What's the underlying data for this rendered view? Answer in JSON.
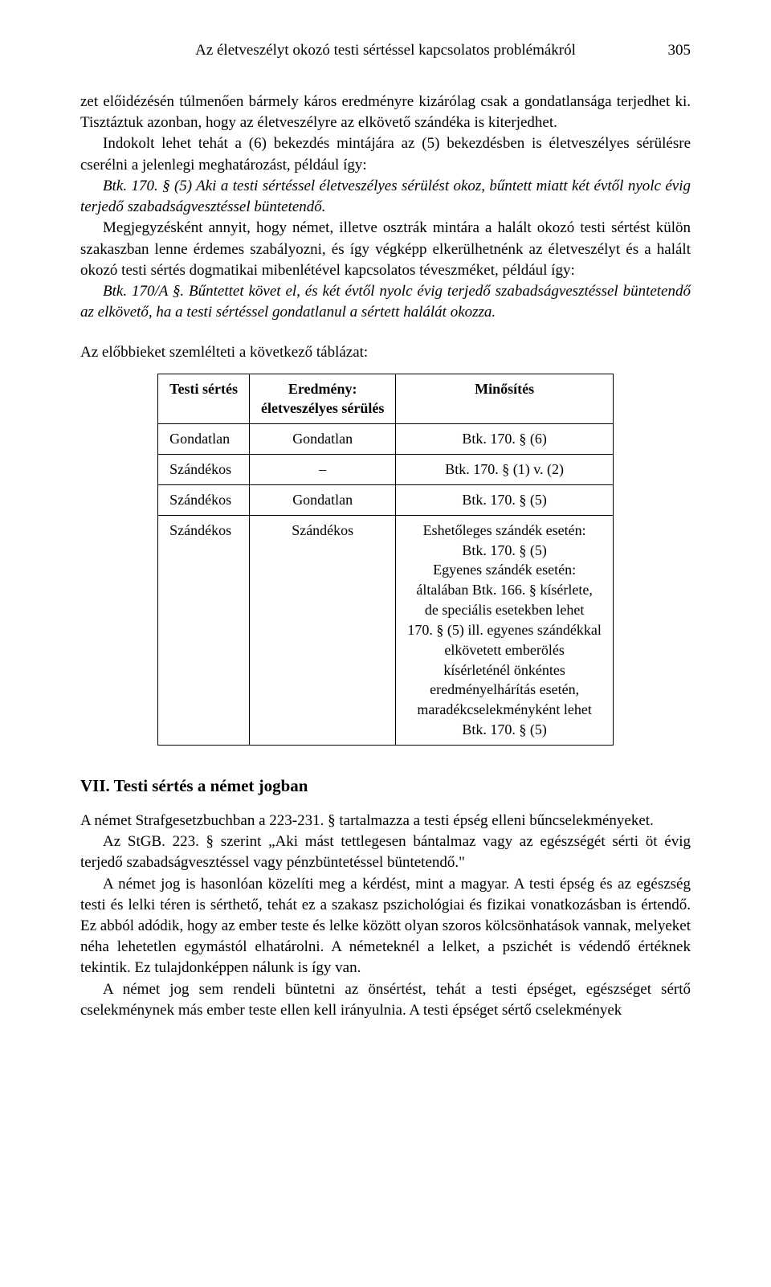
{
  "header": {
    "title": "Az életveszélyt okozó testi sértéssel kapcsolatos problémákról",
    "page_number": "305"
  },
  "para1": "zet előidézésén túlmenően bármely káros eredményre kizárólag csak a gondatlansága terjedhet ki. Tisztáztuk azonban, hogy az életveszélyre az elkövető szándéka is kiterjedhet.",
  "para2": "Indokolt lehet tehát a (6) bekezdés mintájára az (5) bekezdésben is életveszélyes sérülésre cserélni a jelenlegi meghatározást, például így:",
  "para3": "Btk. 170. § (5) Aki a testi sértéssel életveszélyes sérülést okoz, bűntett miatt két évtől nyolc évig terjedő szabadságvesztéssel büntetendő.",
  "para4": "Megjegyzésként annyit, hogy német, illetve osztrák mintára a halált okozó testi sértést külön szakaszban lenne érdemes szabályozni, és így végképp elkerülhetnénk az életveszélyt és a halált okozó testi sértés dogmatikai mibenlétével kapcsolatos téveszméket, például így:",
  "para5": "Btk. 170/A §. Bűntettet követ el, és két évtől nyolc évig terjedő szabadságvesztéssel büntetendő az elkövető, ha a testi sértéssel gondatlanul a sértett halálát okozza.",
  "para6": "Az előbbieket szemlélteti a következő táblázat:",
  "table": {
    "headers": {
      "col1": "Testi sértés",
      "col2_line1": "Eredmény:",
      "col2_line2": "életveszélyes sérülés",
      "col3": "Minősítés"
    },
    "rows": [
      {
        "c1": "Gondatlan",
        "c2": "Gondatlan",
        "c3": "Btk. 170. § (6)"
      },
      {
        "c1": "Szándékos",
        "c2": "–",
        "c3": "Btk. 170. § (1) v. (2)"
      },
      {
        "c1": "Szándékos",
        "c2": "Gondatlan",
        "c3": "Btk. 170. § (5)"
      },
      {
        "c1": "Szándékos",
        "c2": "Szándékos",
        "c3_l1": "Eshetőleges szándék esetén:",
        "c3_l2": "Btk. 170. § (5)",
        "c3_l3": "Egyenes szándék esetén:",
        "c3_l4": "általában Btk. 166. § kísérlete,",
        "c3_l5": "de speciális esetekben lehet",
        "c3_l6": "170. § (5) ill. egyenes szándékkal",
        "c3_l7": "elkövetett emberölés",
        "c3_l8": "kísérleténél önkéntes",
        "c3_l9": "eredményelhárítás esetén,",
        "c3_l10": "maradékcselekményként lehet",
        "c3_l11": "Btk. 170. § (5)"
      }
    ]
  },
  "section7": {
    "heading": "VII. Testi sértés a német jogban",
    "p1": "A német Strafgesetzbuchban a 223-231. § tartalmazza a testi épség elleni bűncselekményeket.",
    "p2": "Az StGB. 223. § szerint „Aki mást tettlegesen bántalmaz vagy az egészségét sérti öt évig terjedő szabadságvesztéssel vagy pénzbüntetéssel büntetendő.\"",
    "p3": "A német jog is hasonlóan közelíti meg a kérdést, mint a magyar. A testi épség és az egészség testi és lelki téren is sérthető, tehát ez a szakasz pszichológiai és fizikai vonatkozásban is értendő. Ez abból adódik, hogy az ember teste és lelke között olyan szoros kölcsönhatások vannak, melyeket néha lehetetlen egymástól elhatárolni. A németeknél a lelket, a pszichét is védendő értéknek tekintik. Ez tulajdonképpen nálunk is így van.",
    "p4": "A német jog sem rendeli büntetni az önsértést, tehát a testi épséget, egészséget sértő cselekménynek más ember teste ellen kell irányulnia. A testi épséget sértő cselekmények"
  }
}
